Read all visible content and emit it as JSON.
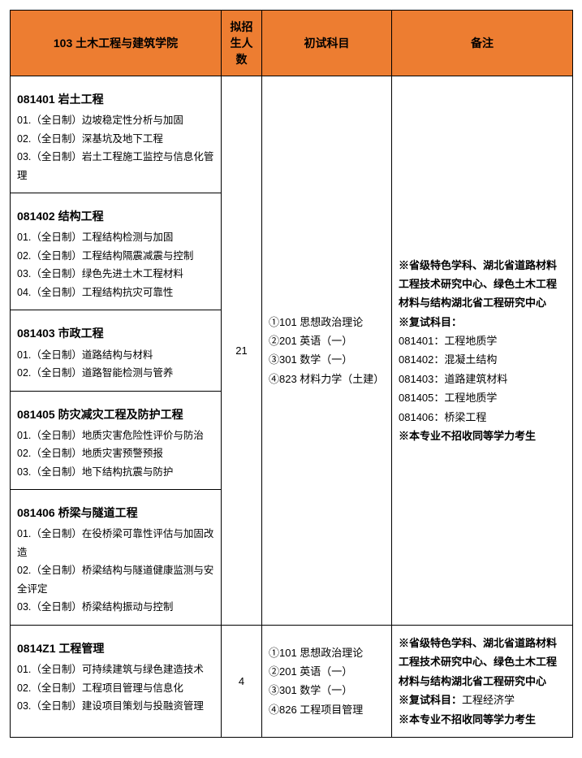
{
  "header": {
    "col1": "103 土木工程与建筑学院",
    "col2": "拟招生人数",
    "col3": "初试科目",
    "col4": "备注"
  },
  "group1": {
    "majors": {
      "m1": {
        "title": "081401 岩土工程",
        "d1": "01.（全日制）边坡稳定性分析与加固",
        "d2": "02.（全日制）深基坑及地下工程",
        "d3": "03.（全日制）岩土工程施工监控与信息化管理"
      },
      "m2": {
        "title": "081402 结构工程",
        "d1": "01.（全日制）工程结构检测与加固",
        "d2": "02.（全日制）工程结构隔震减震与控制",
        "d3": "03.（全日制）绿色先进土木工程材料",
        "d4": "04.（全日制）工程结构抗灾可靠性"
      },
      "m3": {
        "title": "081403 市政工程",
        "d1": "01.（全日制）道路结构与材料",
        "d2": "02.（全日制）道路智能检测与管养"
      },
      "m4": {
        "title": "081405 防灾减灾工程及防护工程",
        "d1": "01.（全日制）地质灾害危险性评价与防治",
        "d2": "02.（全日制）地质灾害预警预报",
        "d3": "03.（全日制）地下结构抗震与防护"
      },
      "m5": {
        "title": "081406 桥梁与隧道工程",
        "d1": "01.（全日制）在役桥梁可靠性评估与加固改造",
        "d2": "02.（全日制）桥梁结构与隧道健康监测与安全评定",
        "d3": "03.（全日制）桥梁结构振动与控制"
      }
    },
    "quota": "21",
    "exams": {
      "e1": "①101 思想政治理论",
      "e2": "②201 英语（一）",
      "e3": "③301 数学（一）",
      "e4": "④823 材料力学（土建）"
    },
    "notes": {
      "n1": "※省级特色学科、湖北省道路材料工程技术研究中心、绿色土木工程材料与结构湖北省工程研究中心",
      "n2a": "※复试科目：",
      "n2b1": "081401：工程地质学",
      "n2b2": "081402：混凝土结构",
      "n2b3": "081403：道路建筑材料",
      "n2b4": "081405：工程地质学",
      "n2b5": "081406：桥梁工程",
      "n3": "※本专业不招收同等学力考生"
    }
  },
  "group2": {
    "major": {
      "title": "0814Z1 工程管理",
      "d1": "01.（全日制）可持续建筑与绿色建造技术",
      "d2": "02.（全日制）工程项目管理与信息化",
      "d3": "03.（全日制）建设项目策划与投融资管理"
    },
    "quota": "4",
    "exams": {
      "e1": "①101 思想政治理论",
      "e2": "②201 英语（一）",
      "e3": "③301 数学（一）",
      "e4": "④826 工程项目管理"
    },
    "notes": {
      "n1": "※省级特色学科、湖北省道路材料工程技术研究中心、绿色土木工程材料与结构湖北省工程研究中心",
      "n2a": "※复试科目：",
      "n2b": "工程经济学",
      "n3": "※本专业不招收同等学力考生"
    }
  }
}
